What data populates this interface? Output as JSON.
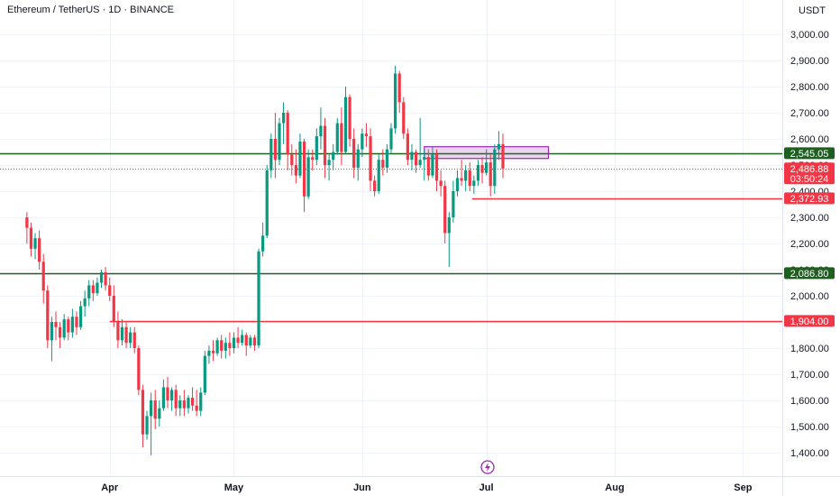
{
  "header": {
    "symbol_title": "Ethereum / TetherUS · 1D · BINANCE",
    "currency": "USDT"
  },
  "chart_data": {
    "type": "candlestick",
    "title": "Ethereum / TetherUS · 1D · BINANCE",
    "yunit": "USDT",
    "ylim": [
      1300,
      3100
    ],
    "y_ticks": [
      {
        "v": 3000,
        "label": "3,000.00"
      },
      {
        "v": 2900,
        "label": "2,900.00"
      },
      {
        "v": 2800,
        "label": "2,800.00"
      },
      {
        "v": 2700,
        "label": "2,700.00"
      },
      {
        "v": 2600,
        "label": "2,600.00"
      },
      {
        "v": 2500,
        "label": "2,500.00"
      },
      {
        "v": 2400,
        "label": "2,400.00"
      },
      {
        "v": 2300,
        "label": "2,300.00"
      },
      {
        "v": 2200,
        "label": "2,200.00"
      },
      {
        "v": 2100,
        "label": "2,100.00"
      },
      {
        "v": 2000,
        "label": "2,000.00"
      },
      {
        "v": 1900,
        "label": "1,900.00"
      },
      {
        "v": 1800,
        "label": "1,800.00"
      },
      {
        "v": 1700,
        "label": "1,700.00"
      },
      {
        "v": 1600,
        "label": "1,600.00"
      },
      {
        "v": 1500,
        "label": "1,500.00"
      },
      {
        "v": 1400,
        "label": "1,400.00"
      }
    ],
    "x_ticks": [
      {
        "day": 20,
        "label": "Apr"
      },
      {
        "day": 50,
        "label": "May"
      },
      {
        "day": 81,
        "label": "Jun"
      },
      {
        "day": 111,
        "label": "Jul"
      },
      {
        "day": 142,
        "label": "Aug"
      },
      {
        "day": 173,
        "label": "Sep"
      }
    ],
    "x_range_days": [
      -6.5,
      182.5
    ],
    "price_labels": [
      {
        "value": 2545.05,
        "label": "2,545.05",
        "color": "#1e5f20"
      },
      {
        "value": 2486.88,
        "label": "2,486.88",
        "countdown": "03:50:24",
        "color": "#f23645"
      },
      {
        "value": 2372.93,
        "label": "2,372.93",
        "color": "#f23645"
      },
      {
        "value": 2086.8,
        "label": "2,086.80",
        "color": "#1e5f20"
      },
      {
        "value": 1904.0,
        "label": "1,904.00",
        "color": "#f23645"
      }
    ],
    "horizontal_lines": [
      {
        "value": 2545.05,
        "color": "#1e5f20",
        "from_day": -6.5,
        "dashed": false
      },
      {
        "value": 2086.8,
        "color": "#1e5f20",
        "from_day": -6.5,
        "dashed": false
      },
      {
        "value": 1904.0,
        "color": "#f23645",
        "from_day": 20,
        "dashed": false
      },
      {
        "value": 2372.93,
        "color": "#f23645",
        "from_day": 107.5,
        "dashed": false
      },
      {
        "value": 2486.88,
        "color": "#f23645",
        "from_day": -6.5,
        "dashed": true
      }
    ],
    "zone": {
      "from_day": 96,
      "to_day": 126,
      "low": 2525,
      "high": 2570,
      "color": "#9c27b0"
    },
    "candles": [
      [
        2300,
        2320,
        2200,
        2260
      ],
      [
        2260,
        2280,
        2150,
        2180
      ],
      [
        2180,
        2240,
        2140,
        2220
      ],
      [
        2220,
        2250,
        2100,
        2130
      ],
      [
        2130,
        2160,
        1970,
        2020
      ],
      [
        2020,
        2040,
        1800,
        1830
      ],
      [
        1830,
        1920,
        1750,
        1900
      ],
      [
        1900,
        1940,
        1830,
        1880
      ],
      [
        1880,
        1900,
        1800,
        1840
      ],
      [
        1840,
        1930,
        1830,
        1910
      ],
      [
        1910,
        1920,
        1830,
        1860
      ],
      [
        1860,
        1950,
        1840,
        1920
      ],
      [
        1920,
        1940,
        1850,
        1880
      ],
      [
        1880,
        1980,
        1870,
        1960
      ],
      [
        1960,
        2020,
        1920,
        1990
      ],
      [
        1990,
        2060,
        1960,
        2040
      ],
      [
        2040,
        2060,
        1980,
        2010
      ],
      [
        2010,
        2070,
        2000,
        2050
      ],
      [
        2050,
        2100,
        2030,
        2090
      ],
      [
        2090,
        2110,
        2020,
        2040
      ],
      [
        2040,
        2070,
        1980,
        2000
      ],
      [
        2000,
        2040,
        1880,
        1900
      ],
      [
        1900,
        1940,
        1800,
        1830
      ],
      [
        1830,
        1910,
        1810,
        1880
      ],
      [
        1880,
        1900,
        1800,
        1820
      ],
      [
        1820,
        1880,
        1800,
        1860
      ],
      [
        1860,
        1880,
        1780,
        1800
      ],
      [
        1800,
        1810,
        1620,
        1640
      ],
      [
        1640,
        1660,
        1420,
        1470
      ],
      [
        1470,
        1560,
        1450,
        1540
      ],
      [
        1540,
        1630,
        1390,
        1600
      ],
      [
        1600,
        1640,
        1490,
        1530
      ],
      [
        1530,
        1600,
        1500,
        1570
      ],
      [
        1570,
        1680,
        1560,
        1650
      ],
      [
        1650,
        1690,
        1570,
        1600
      ],
      [
        1600,
        1650,
        1560,
        1640
      ],
      [
        1640,
        1660,
        1540,
        1570
      ],
      [
        1570,
        1620,
        1540,
        1600
      ],
      [
        1600,
        1640,
        1540,
        1570
      ],
      [
        1570,
        1620,
        1550,
        1610
      ],
      [
        1610,
        1650,
        1560,
        1580
      ],
      [
        1580,
        1640,
        1540,
        1560
      ],
      [
        1560,
        1650,
        1540,
        1630
      ],
      [
        1630,
        1790,
        1620,
        1770
      ],
      [
        1770,
        1810,
        1740,
        1790
      ],
      [
        1790,
        1830,
        1750,
        1780
      ],
      [
        1780,
        1840,
        1770,
        1830
      ],
      [
        1830,
        1850,
        1760,
        1790
      ],
      [
        1790,
        1840,
        1760,
        1820
      ],
      [
        1820,
        1860,
        1770,
        1800
      ],
      [
        1800,
        1860,
        1780,
        1840
      ],
      [
        1840,
        1880,
        1800,
        1820
      ],
      [
        1820,
        1870,
        1810,
        1850
      ],
      [
        1850,
        1860,
        1770,
        1810
      ],
      [
        1810,
        1850,
        1800,
        1840
      ],
      [
        1840,
        1850,
        1790,
        1810
      ],
      [
        1810,
        2180,
        1800,
        2170
      ],
      [
        2170,
        2280,
        2150,
        2230
      ],
      [
        2230,
        2500,
        2220,
        2480
      ],
      [
        2480,
        2620,
        2450,
        2600
      ],
      [
        2600,
        2700,
        2450,
        2520
      ],
      [
        2520,
        2680,
        2500,
        2660
      ],
      [
        2660,
        2740,
        2580,
        2700
      ],
      [
        2700,
        2710,
        2480,
        2540
      ],
      [
        2540,
        2580,
        2460,
        2500
      ],
      [
        2500,
        2560,
        2430,
        2460
      ],
      [
        2460,
        2620,
        2450,
        2590
      ],
      [
        2590,
        2600,
        2320,
        2380
      ],
      [
        2380,
        2560,
        2370,
        2530
      ],
      [
        2530,
        2560,
        2480,
        2520
      ],
      [
        2520,
        2640,
        2500,
        2610
      ],
      [
        2610,
        2720,
        2560,
        2650
      ],
      [
        2650,
        2680,
        2450,
        2500
      ],
      [
        2500,
        2540,
        2440,
        2520
      ],
      [
        2520,
        2580,
        2480,
        2550
      ],
      [
        2550,
        2680,
        2540,
        2660
      ],
      [
        2660,
        2720,
        2500,
        2550
      ],
      [
        2550,
        2800,
        2540,
        2760
      ],
      [
        2760,
        2770,
        2570,
        2600
      ],
      [
        2600,
        2640,
        2450,
        2490
      ],
      [
        2490,
        2580,
        2440,
        2560
      ],
      [
        2560,
        2640,
        2530,
        2620
      ],
      [
        2620,
        2660,
        2570,
        2610
      ],
      [
        2610,
        2640,
        2400,
        2440
      ],
      [
        2440,
        2460,
        2380,
        2400
      ],
      [
        2400,
        2540,
        2390,
        2520
      ],
      [
        2520,
        2560,
        2460,
        2490
      ],
      [
        2490,
        2580,
        2470,
        2560
      ],
      [
        2560,
        2660,
        2540,
        2640
      ],
      [
        2640,
        2880,
        2620,
        2850
      ],
      [
        2850,
        2860,
        2700,
        2740
      ],
      [
        2740,
        2760,
        2600,
        2620
      ],
      [
        2620,
        2640,
        2500,
        2520
      ],
      [
        2520,
        2580,
        2480,
        2550
      ],
      [
        2550,
        2560,
        2470,
        2500
      ],
      [
        2500,
        2680,
        2490,
        2520
      ],
      [
        2520,
        2560,
        2440,
        2530
      ],
      [
        2530,
        2560,
        2440,
        2460
      ],
      [
        2460,
        2570,
        2450,
        2540
      ],
      [
        2540,
        2560,
        2400,
        2440
      ],
      [
        2440,
        2480,
        2380,
        2420
      ],
      [
        2420,
        2440,
        2200,
        2240
      ],
      [
        2240,
        2320,
        2110,
        2300
      ],
      [
        2300,
        2440,
        2280,
        2400
      ],
      [
        2400,
        2480,
        2380,
        2450
      ],
      [
        2450,
        2520,
        2420,
        2440
      ],
      [
        2440,
        2500,
        2400,
        2480
      ],
      [
        2480,
        2510,
        2400,
        2420
      ],
      [
        2420,
        2460,
        2390,
        2440
      ],
      [
        2440,
        2520,
        2420,
        2500
      ],
      [
        2500,
        2530,
        2430,
        2470
      ],
      [
        2470,
        2560,
        2460,
        2510
      ],
      [
        2510,
        2540,
        2380,
        2420
      ],
      [
        2420,
        2580,
        2390,
        2560
      ],
      [
        2560,
        2630,
        2520,
        2580
      ],
      [
        2580,
        2620,
        2450,
        2487
      ]
    ]
  }
}
